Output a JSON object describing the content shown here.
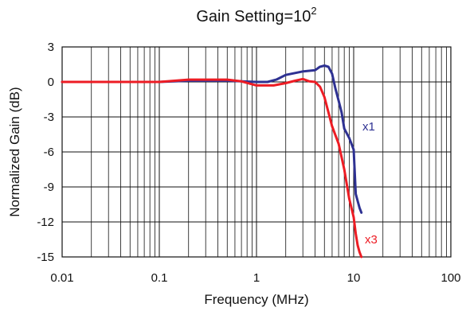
{
  "chart_data": {
    "type": "line",
    "title": "Gain Setting=10",
    "title_superscript": "2",
    "xlabel": "Frequency (MHz)",
    "ylabel": "Normalized Gain (dB)",
    "x_scale": "log",
    "xlim": [
      0.01,
      100
    ],
    "ylim": [
      -15,
      3
    ],
    "x_ticks": [
      0.01,
      0.1,
      1,
      10,
      100
    ],
    "x_tick_labels": [
      "0.01",
      "0.1",
      "1",
      "10",
      "100"
    ],
    "y_ticks": [
      3,
      0,
      -3,
      -6,
      -9,
      -12,
      -15
    ],
    "y_tick_labels": [
      "3",
      "0",
      "-3",
      "-6",
      "-9",
      "-12",
      "-15"
    ],
    "grid": true,
    "series": [
      {
        "name": "x1",
        "color": "#2e3192",
        "x": [
          0.01,
          0.1,
          0.2,
          0.5,
          1,
          1.3,
          1.6,
          2,
          3,
          4,
          4.5,
          5,
          5.5,
          6,
          6.5,
          7,
          7.5,
          8,
          9,
          10,
          10.5,
          11,
          11.5,
          12
        ],
        "y": [
          0,
          0,
          0.1,
          0.1,
          0,
          0,
          0.2,
          0.6,
          0.9,
          1.0,
          1.3,
          1.4,
          1.3,
          0.7,
          -0.6,
          -1.6,
          -2.6,
          -4.0,
          -4.8,
          -5.8,
          -9.6,
          -10.2,
          -10.8,
          -11.2
        ]
      },
      {
        "name": "x3",
        "color": "#ed1c24",
        "x": [
          0.01,
          0.1,
          0.2,
          0.5,
          0.7,
          1,
          1.5,
          2,
          2.5,
          3,
          3.5,
          4,
          4.5,
          5,
          5.5,
          6,
          7,
          8,
          9,
          10,
          10.5,
          11,
          11.5,
          12
        ],
        "y": [
          0,
          0,
          0.2,
          0.2,
          0.05,
          -0.3,
          -0.3,
          -0.1,
          0.1,
          0.25,
          0.05,
          0,
          -0.4,
          -1.3,
          -2.6,
          -3.8,
          -5.3,
          -7.5,
          -10.0,
          -11.6,
          -13.0,
          -14.0,
          -14.6,
          -15.0
        ]
      }
    ],
    "annotations": [
      {
        "text": "x1",
        "color": "#2e3192"
      },
      {
        "text": "x3",
        "color": "#ed1c24"
      }
    ]
  }
}
